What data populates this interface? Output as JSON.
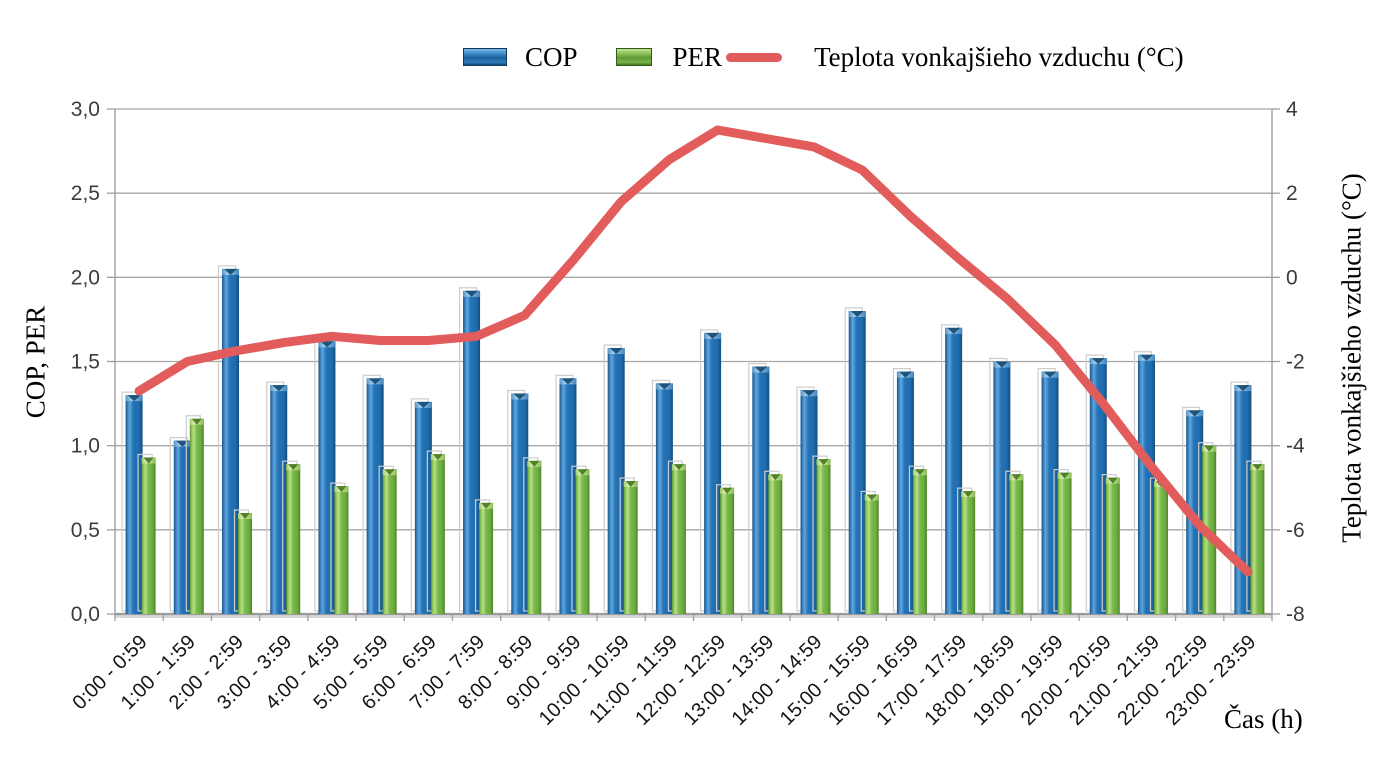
{
  "chart_data": {
    "type": "combo",
    "title": "",
    "categories": [
      "0:00 - 0:59",
      "1:00 - 1:59",
      "2:00 - 2:59",
      "3:00 - 3:59",
      "4:00 - 4:59",
      "5:00 - 5:59",
      "6:00 - 6:59",
      "7:00 - 7:59",
      "8:00 - 8:59",
      "9:00 - 9:59",
      "10:00 - 10:59",
      "11:00 - 11:59",
      "12:00 - 12:59",
      "13:00 - 13:59",
      "14:00 - 14:59",
      "15:00 - 15:59",
      "16:00 - 16:59",
      "17:00 - 17:59",
      "18:00 - 18:59",
      "19:00 - 19:59",
      "20:00 - 20:59",
      "21:00 - 21:59",
      "22:00 - 22:59",
      "23:00 - 23:59"
    ],
    "series": [
      {
        "name": "COP",
        "type": "bar",
        "axis": "left",
        "color": "#2173B6",
        "values": [
          1.3,
          1.03,
          2.05,
          1.36,
          1.62,
          1.4,
          1.26,
          1.92,
          1.31,
          1.4,
          1.58,
          1.37,
          1.67,
          1.47,
          1.33,
          1.8,
          1.44,
          1.7,
          1.5,
          1.44,
          1.52,
          1.54,
          1.21,
          1.36
        ]
      },
      {
        "name": "PER",
        "type": "bar",
        "axis": "left",
        "color": "#7BB94B",
        "values": [
          0.93,
          1.16,
          0.6,
          0.89,
          0.76,
          0.86,
          0.95,
          0.66,
          0.91,
          0.86,
          0.79,
          0.89,
          0.75,
          0.83,
          0.92,
          0.71,
          0.86,
          0.73,
          0.83,
          0.84,
          0.81,
          0.79,
          1.0,
          0.89
        ]
      },
      {
        "name": "Teplota vonkajšieho vzduchu (°C)",
        "type": "line",
        "axis": "right",
        "color": "#E25C5C",
        "values": [
          -2.7,
          -2.0,
          -1.75,
          -1.55,
          -1.4,
          -1.5,
          -1.5,
          -1.4,
          -0.9,
          0.4,
          1.8,
          2.8,
          3.5,
          3.3,
          3.1,
          2.55,
          1.45,
          0.45,
          -0.5,
          -1.6,
          -3.0,
          -4.5,
          -5.9,
          -7.0
        ]
      }
    ],
    "left_axis": {
      "label": "COP, PER",
      "min": 0,
      "max": 3,
      "step": 0.5,
      "decimal_comma": true
    },
    "right_axis": {
      "label": "Teplota vonkajšieho vzduchu (°C)",
      "min": -8,
      "max": 4,
      "step": 2
    },
    "xlabel": "Čas (h)",
    "grid": "horizontal",
    "legend_position": "top"
  },
  "colors": {
    "gridline": "#A6A6A6",
    "axis": "#9E9E9E",
    "bar_shadow": "#CCCCCC",
    "cop_dark": "#15486F",
    "per_dark": "#47751F"
  }
}
